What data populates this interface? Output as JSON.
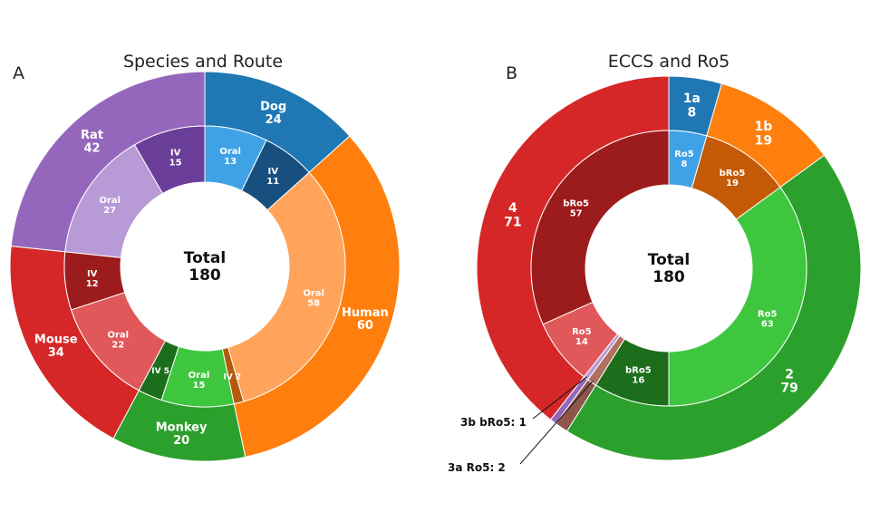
{
  "chart_data": [
    {
      "type": "pie",
      "panel_label": "A",
      "title": "Species and Route",
      "center_label": "Total",
      "center_value": 180,
      "outer": [
        {
          "name": "Dog",
          "value": 24,
          "color": "#1f77b4"
        },
        {
          "name": "Human",
          "value": 60,
          "color": "#ff7f0e"
        },
        {
          "name": "Monkey",
          "value": 20,
          "color": "#2ca02c"
        },
        {
          "name": "Mouse",
          "value": 34,
          "color": "#d62728"
        },
        {
          "name": "Rat",
          "value": 42,
          "color": "#9467bd"
        }
      ],
      "inner": [
        {
          "name": "Oral",
          "value": 13,
          "color": "#3fa2e6",
          "shown_label": "Oral\n13"
        },
        {
          "name": "IV",
          "value": 11,
          "color": "#17507e",
          "shown_label": "IV\n11"
        },
        {
          "name": "Oral",
          "value": 58,
          "color": "#ffa45a",
          "shown_label": "Oral\n58"
        },
        {
          "name": "IV",
          "value": 2,
          "color": "#b55a0a",
          "shown_label": "IV 2"
        },
        {
          "name": "Oral",
          "value": 15,
          "color": "#3fc63f",
          "shown_label": "Oral\n15"
        },
        {
          "name": "IV",
          "value": 5,
          "color": "#1c6e1c",
          "shown_label": "IV 5"
        },
        {
          "name": "Oral",
          "value": 22,
          "color": "#e0585a",
          "shown_label": "Oral\n22"
        },
        {
          "name": "IV",
          "value": 12,
          "color": "#9c1b1c",
          "shown_label": "IV\n12"
        },
        {
          "name": "Oral",
          "value": 27,
          "color": "#b79ad6",
          "shown_label": "Oral\n27"
        },
        {
          "name": "IV",
          "value": 15,
          "color": "#6b3e9a",
          "shown_label": "IV\n15"
        }
      ]
    },
    {
      "type": "pie",
      "panel_label": "B",
      "title": "ECCS and Ro5",
      "center_label": "Total",
      "center_value": 180,
      "outer": [
        {
          "name": "1a",
          "value": 8,
          "color": "#1f77b4"
        },
        {
          "name": "1b",
          "value": 19,
          "color": "#ff7f0e"
        },
        {
          "name": "2",
          "value": 79,
          "color": "#2ca02c"
        },
        {
          "name": "3a",
          "value": 2,
          "color": "#8c564b"
        },
        {
          "name": "3b",
          "value": 1,
          "color": "#9467bd"
        },
        {
          "name": "4",
          "value": 71,
          "color": "#d62728"
        }
      ],
      "inner": [
        {
          "name": "Ro5",
          "value": 8,
          "color": "#3fa2e6"
        },
        {
          "name": "bRo5",
          "value": 19,
          "color": "#c45a05"
        },
        {
          "name": "Ro5",
          "value": 63,
          "color": "#3fc63f"
        },
        {
          "name": "bRo5",
          "value": 16,
          "color": "#1c6e1c"
        },
        {
          "name": "Ro5",
          "value": 2,
          "color": "#b0705e"
        },
        {
          "name": "bRo5",
          "value": 1,
          "color": "#b79ad6"
        },
        {
          "name": "Ro5",
          "value": 14,
          "color": "#e0585a"
        },
        {
          "name": "bRo5",
          "value": 57,
          "color": "#9c1b1c"
        }
      ],
      "callouts": [
        "3b bRo5: 1",
        "3a Ro5: 2"
      ]
    }
  ]
}
